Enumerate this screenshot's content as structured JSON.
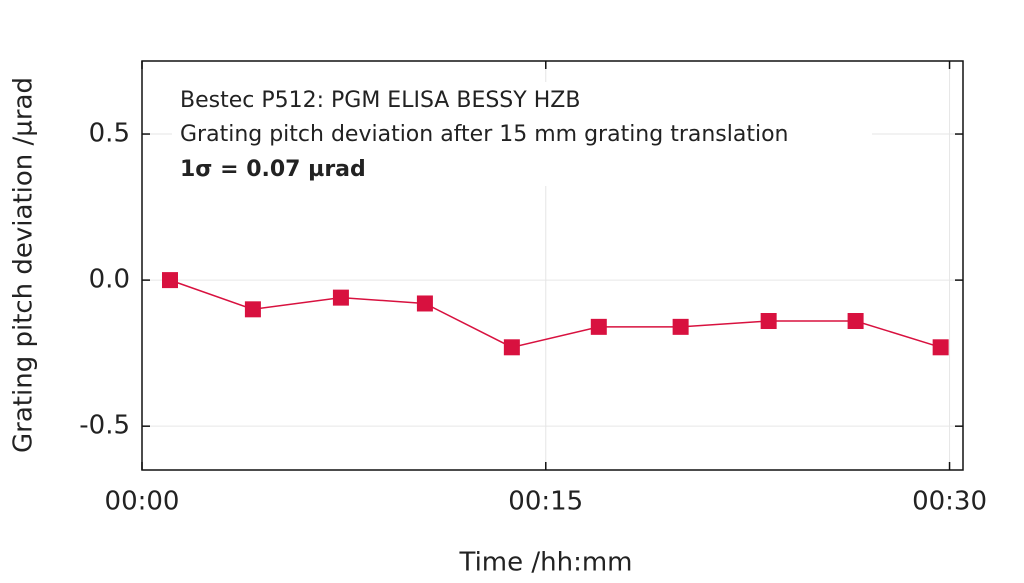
{
  "chart_data": {
    "type": "line",
    "annotations": [
      "Bestec P512: PGM ELISA BESSY HZB",
      "Grating pitch deviation after 15 mm grating translation",
      "1σ = 0.07 µrad"
    ],
    "x_label": "Time /hh:mm",
    "y_label": "Grating pitch deviation /µrad",
    "x": [
      1.04,
      4.12,
      7.39,
      10.51,
      13.74,
      16.97,
      20.01,
      23.28,
      26.51,
      29.67
    ],
    "series": [
      {
        "name": "Grating pitch deviation",
        "color": "#d8113f",
        "values": [
          0.0,
          -0.1,
          -0.06,
          -0.08,
          -0.23,
          -0.16,
          -0.16,
          -0.14,
          -0.14,
          -0.23
        ]
      }
    ],
    "xlim": [
      0,
      30.5
    ],
    "xticks": [
      {
        "value": 0,
        "label": "00:00"
      },
      {
        "value": 15,
        "label": "00:15"
      },
      {
        "value": 30,
        "label": "00:30"
      }
    ],
    "ylim": [
      -0.65,
      0.75
    ],
    "yticks": [
      -0.5,
      {
        "value": 0,
        "label": "0.0"
      },
      0.5
    ],
    "grid": true
  }
}
